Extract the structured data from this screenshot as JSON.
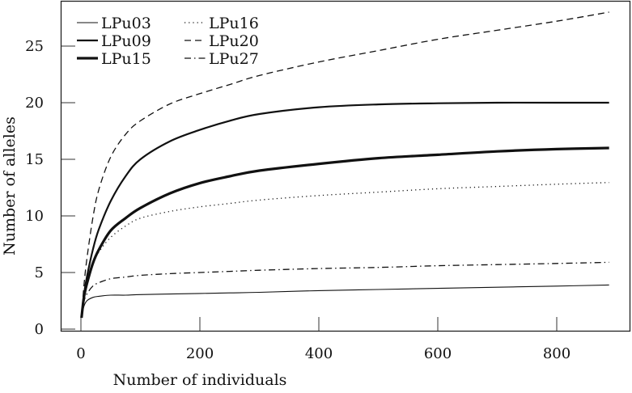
{
  "chart_data": {
    "type": "line",
    "title": "",
    "xlabel": "Number of individuals",
    "ylabel": "Number of alleles",
    "xlim": [
      -30,
      920
    ],
    "ylim": [
      -0.3,
      28.7
    ],
    "xticks": [
      0,
      200,
      400,
      600,
      800
    ],
    "yticks": [
      0,
      5,
      10,
      15,
      20,
      25
    ],
    "grid": false,
    "legend_position": "upper left",
    "x": [
      1,
      5,
      10,
      20,
      30,
      50,
      75,
      100,
      150,
      200,
      250,
      300,
      400,
      500,
      600,
      700,
      800,
      888
    ],
    "series": [
      {
        "name": "LPu03",
        "style": "solid-thin",
        "values": [
          1,
          2.0,
          2.5,
          2.8,
          2.9,
          3.0,
          3.0,
          3.05,
          3.1,
          3.15,
          3.2,
          3.25,
          3.4,
          3.5,
          3.6,
          3.7,
          3.8,
          3.9
        ]
      },
      {
        "name": "LPu09",
        "style": "solid-medium",
        "values": [
          1,
          3.0,
          4.6,
          7.0,
          8.8,
          11.3,
          13.5,
          15.0,
          16.6,
          17.6,
          18.4,
          19.0,
          19.6,
          19.85,
          19.95,
          20.0,
          20.0,
          20.0
        ]
      },
      {
        "name": "LPu15",
        "style": "solid-thick",
        "values": [
          1,
          2.8,
          4.0,
          5.8,
          7.0,
          8.7,
          9.8,
          10.7,
          12.0,
          12.9,
          13.5,
          14.0,
          14.6,
          15.1,
          15.4,
          15.7,
          15.9,
          16.0
        ]
      },
      {
        "name": "LPu16",
        "style": "dotted",
        "values": [
          1,
          2.8,
          4.0,
          5.7,
          6.8,
          8.1,
          9.1,
          9.8,
          10.4,
          10.8,
          11.1,
          11.4,
          11.8,
          12.1,
          12.4,
          12.6,
          12.8,
          12.95
        ]
      },
      {
        "name": "LPu20",
        "style": "dashed",
        "values": [
          1,
          3.8,
          6.2,
          9.8,
          12.3,
          15.2,
          17.2,
          18.4,
          19.9,
          20.8,
          21.6,
          22.4,
          23.6,
          24.6,
          25.6,
          26.4,
          27.2,
          28.0
        ]
      },
      {
        "name": "LPu27",
        "style": "dashdot",
        "values": [
          1,
          2.4,
          3.1,
          3.8,
          4.1,
          4.45,
          4.6,
          4.75,
          4.9,
          5.0,
          5.1,
          5.2,
          5.35,
          5.45,
          5.6,
          5.7,
          5.8,
          5.9
        ]
      }
    ]
  },
  "legend": {
    "items": [
      {
        "label": "LPu03",
        "style": "solid-thin"
      },
      {
        "label": "LPu09",
        "style": "solid-medium"
      },
      {
        "label": "LPu15",
        "style": "solid-thick"
      },
      {
        "label": "LPu16",
        "style": "dotted"
      },
      {
        "label": "LPu20",
        "style": "dashed"
      },
      {
        "label": "LPu27",
        "style": "dashdot"
      }
    ]
  },
  "axes": {
    "xlabel": "Number of individuals",
    "ylabel": "Number of alleles"
  },
  "colors": {
    "line": "#111111",
    "frame": "#222222",
    "background": "#ffffff"
  }
}
